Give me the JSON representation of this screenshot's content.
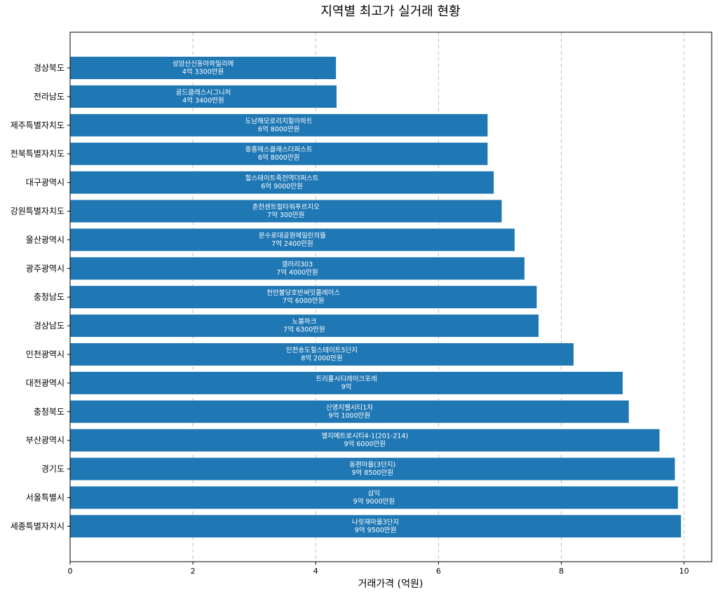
{
  "chart_data": {
    "type": "bar",
    "orientation": "horizontal",
    "title": "지역별 최고가 실거래 현황",
    "xlabel": "거래가격 (억원)",
    "ylabel": "",
    "xlim": [
      0,
      10.45
    ],
    "xticks": [
      0,
      2,
      4,
      6,
      8,
      10
    ],
    "grid": "x-dashed",
    "bar_color": "#1f77b4",
    "categories": [
      "경상북도",
      "전라남도",
      "제주특별자치도",
      "전북특별자치도",
      "대구광역시",
      "강원특별자치도",
      "울산광역시",
      "광주광역시",
      "충청남도",
      "경상남도",
      "인천광역시",
      "대전광역시",
      "충청북도",
      "부산광역시",
      "경기도",
      "서울특별시",
      "세종특별자치시"
    ],
    "values": [
      4.33,
      4.34,
      6.8,
      6.8,
      6.9,
      7.03,
      7.24,
      7.4,
      7.6,
      7.63,
      8.2,
      9.0,
      9.1,
      9.6,
      9.85,
      9.9,
      9.95
    ],
    "bar_labels": [
      [
        "성암산신동아파밀리에",
        "4억 3300만원"
      ],
      [
        "골드클래스시그니처",
        "4억 3400만원"
      ],
      [
        "도남해모로리치힐아파트",
        "6억 8000만원"
      ],
      [
        "중흥에스클래스더퍼스트",
        "6억 8000만원"
      ],
      [
        "힐스테이트죽전역더퍼스트",
        "6억 9000만원"
      ],
      [
        "춘천센트럴타워푸르지오",
        "7억 300만원"
      ],
      [
        "문수로대공원에일린의뜰",
        "7억 2400만원"
      ],
      [
        "갤러리303",
        "7억 4000만원"
      ],
      [
        "천안불당호반써밋플레이스",
        "7억 6000만원"
      ],
      [
        "노블파크",
        "7억 6300만원"
      ],
      [
        "인천송도힐스테이트5단지",
        "8억 2000만원"
      ],
      [
        "트리풀시티레이크포레",
        "9억"
      ],
      [
        "신영지웰시티1차",
        "9억 1000만원"
      ],
      [
        "엘지메트로시티4-1(201-214)",
        "9억 6000만원"
      ],
      [
        "동편마을(3단지)",
        "9억 8500만원"
      ],
      [
        "삼익",
        "9억 9000만원"
      ],
      [
        "나릿재마을3단지",
        "9억 9500만원"
      ]
    ]
  }
}
